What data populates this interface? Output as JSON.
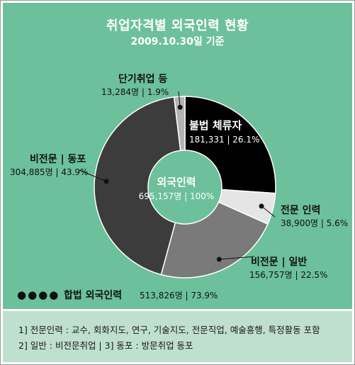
{
  "header": {
    "title": "취업자격별 외국인력 현황",
    "subtitle": "2009.10.30일 기준"
  },
  "chart_data": {
    "type": "pie",
    "variant": "donut",
    "center": {
      "title": "외국인력",
      "detail": "695,157명 | 100%",
      "total": 695157
    },
    "slices": [
      {
        "name": "불법 체류자",
        "detail": "181,331 | 26.1%",
        "value": 181331,
        "percent": 26.1,
        "color": "#000000"
      },
      {
        "name": "전문 인력",
        "detail": "38,900명 | 5.6%",
        "value": 38900,
        "percent": 5.6,
        "color": "#e5e5e5"
      },
      {
        "name": "비전문 | 일반",
        "detail": "156,757명 | 22.5%",
        "value": 156757,
        "percent": 22.5,
        "color": "#7a7a7a"
      },
      {
        "name": "비전문 | 동포",
        "detail": "304,885명 | 43.9%",
        "value": 304885,
        "percent": 43.9,
        "color": "#3c3c3c"
      },
      {
        "name": "단기취업 등",
        "detail": "13,284명 | 1.9%",
        "value": 13284,
        "percent": 1.9,
        "color": "#b3b3b3"
      }
    ],
    "summary": {
      "bullets": "●●●●",
      "label": "합법 외국인력",
      "detail": "513,826명 | 73.9%"
    }
  },
  "notes": [
    "1] 전문인력 : 교수, 회화지도, 연구, 기술지도, 전문직업, 예술흥행, 특정활동 포함",
    "2] 일반 : 비전문취업    |    3] 동포 : 방문취업 동포"
  ]
}
